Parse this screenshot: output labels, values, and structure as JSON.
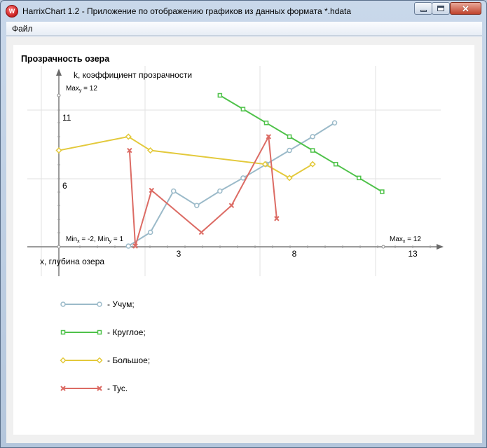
{
  "window": {
    "title": "HarrixChart 1.2 - Приложение по отображению графиков из данных формата *.hdata",
    "icon": "app-logo-icon"
  },
  "menu": {
    "file": "Файл"
  },
  "chart_data": {
    "type": "line",
    "title": "Прозрачность озера",
    "xlabel": "x, глубина озера",
    "ylabel": "k, коэффициент прозрачности",
    "xlim": [
      -2,
      12
    ],
    "ylim": [
      1,
      12
    ],
    "x_ticks": [
      3,
      8,
      13
    ],
    "y_ticks": [
      6,
      11
    ],
    "grid": true,
    "legend_position": "below",
    "annotations": {
      "min_label": "Min",
      "min_x_sub": "x",
      "min_x_val": " = -2, ",
      "min_y_sub": "y",
      "min_y_val": " = 1",
      "max_x_label": "Max",
      "max_x_sub": "x",
      "max_x_val": " = 12",
      "max_y_label": "Max",
      "max_y_sub": "y",
      "max_y_val": " = 12"
    },
    "series": [
      {
        "name": "Учум",
        "color": "#9bbac9",
        "marker": "circle",
        "x": [
          1,
          1.95,
          2.95,
          3.95,
          4.95,
          5.95,
          6.95,
          7.95,
          8.95,
          9.9
        ],
        "y": [
          0.05,
          1.05,
          4.05,
          3.0,
          4.05,
          5.0,
          6.0,
          7.0,
          8.0,
          9.0
        ]
      },
      {
        "name": "Круглое",
        "color": "#4fc24a",
        "marker": "square",
        "x": [
          4.95,
          5.95,
          6.95,
          7.95,
          8.95,
          9.95,
          10.95,
          11.95
        ],
        "y": [
          11.0,
          10.0,
          9.0,
          8.0,
          7.0,
          6.0,
          5.0,
          4.0
        ]
      },
      {
        "name": "Большое",
        "color": "#e3c93b",
        "marker": "diamond",
        "x": [
          -2.0,
          1.0,
          1.95,
          6.9,
          7.95,
          8.95
        ],
        "y": [
          7.0,
          8.0,
          7.0,
          6.0,
          5.0,
          6.0
        ]
      },
      {
        "name": "Тус.",
        "color": "#dc6b64",
        "marker": "cross",
        "x": [
          1.05,
          1.3,
          2.0,
          4.15,
          5.45,
          7.05,
          7.4
        ],
        "y": [
          7.0,
          0.05,
          4.1,
          1.05,
          3.0,
          8.0,
          2.05
        ]
      }
    ],
    "legend": {
      "entries": [
        "- Учум;",
        "- Круглое;",
        "- Большое;",
        "- Тус."
      ]
    }
  }
}
